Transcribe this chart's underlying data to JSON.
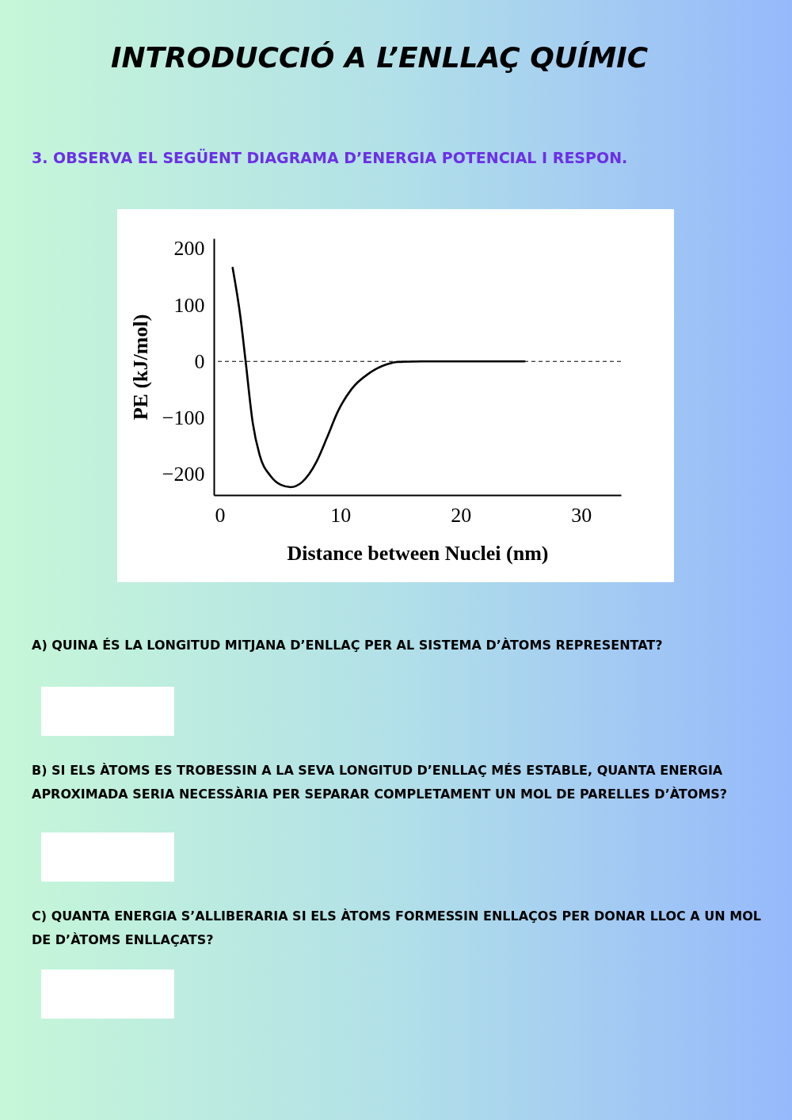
{
  "chart_data": {
    "type": "line",
    "title": "INTRODUCCIÓ A L’ENLLAÇ QUÍMIC",
    "subtitle": "3. OBSERVA EL SEGÜENT DIAGRAMA D’ENERGIA POTENCIAL I RESPON.",
    "xlabel": "Distance between Nuclei (nm)",
    "ylabel": "PE (kJ/mol)",
    "x": [
      1.06,
      1.7,
      2.14,
      2.73,
      3.3,
      4.2,
      5.07,
      5.87,
      6.83,
      8.0,
      8.9,
      9.77,
      10.94,
      12.4,
      13.9,
      14.75,
      16.8,
      25.3
    ],
    "series": [
      {
        "color": "#000000",
        "values": [
          166,
          80,
          0,
          -109,
          -166,
          -203,
          -219,
          -223,
          -214,
          -179,
          -135,
          -90,
          -49,
          -21,
          -5,
          -1,
          0,
          0
        ]
      }
    ],
    "xlim": [
      -0.5,
      33.3
    ],
    "ylim": [
      -237,
      218
    ],
    "xticks": [
      0,
      10,
      20,
      30
    ],
    "yticks": [
      -200,
      -100,
      0,
      100,
      200
    ],
    "ref_lines": [
      {
        "axis": "y",
        "value": 0,
        "line_style": "dashed",
        "color": "#000000"
      }
    ],
    "grid": false,
    "marker": "none",
    "line_style": "solid",
    "annotations": [
      "A) QUINA ÉS LA LONGITUD MITJANA D’ENLLAÇ PER AL SISTEMA D’ÀTOMS REPRESENTAT?",
      "B) SI ELS ÀTOMS ES TROBESSIN A LA SEVA LONGITUD D’ENLLAÇ MÉS ESTABLE, QUANTA ENERGIA APROXIMADA SERIA NECESSÀRIA PER SEPARAR COMPLETAMENT UN MOL DE PARELLES D’ÀTOMS?",
      "C) QUANTA ENERGIA S’ALLIBERARIA SI ELS ÀTOMS FORMESSIN ENLLAÇOS PER DONAR LLOC A UN MOL DE D’ÀTOMS ENLLAÇATS?"
    ]
  }
}
